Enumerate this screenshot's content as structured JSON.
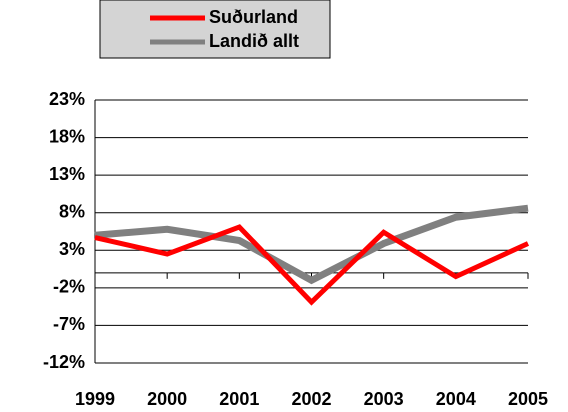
{
  "chart_data": {
    "type": "line",
    "categories": [
      "1999",
      "2000",
      "2001",
      "2002",
      "2003",
      "2004",
      "2005"
    ],
    "series": [
      {
        "name": "Suðurland",
        "color": "#ff0000",
        "values": [
          4.7,
          2.5,
          6.1,
          -3.9,
          5.4,
          -0.5,
          3.9
        ]
      },
      {
        "name": "Landið allt",
        "color": "#808080",
        "values": [
          5.0,
          5.8,
          4.3,
          -1.0,
          3.9,
          7.4,
          8.6
        ]
      }
    ],
    "ylim": [
      -12,
      23
    ],
    "yticks": [
      {
        "value": -12,
        "label": "-12%"
      },
      {
        "value": -7,
        "label": "-7%"
      },
      {
        "value": -2,
        "label": "-2%"
      },
      {
        "value": 3,
        "label": "3%"
      },
      {
        "value": 8,
        "label": "8%"
      },
      {
        "value": 13,
        "label": "13%"
      },
      {
        "value": 18,
        "label": "18%"
      },
      {
        "value": 23,
        "label": "23%"
      }
    ],
    "grid": true
  }
}
